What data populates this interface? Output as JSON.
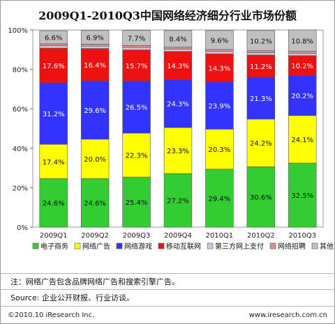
{
  "chart_data": {
    "type": "bar",
    "stacked": true,
    "title": "2009Q1-2010Q3中国网络经济细分行业市场份额",
    "categories": [
      "2009Q1",
      "2009Q2",
      "2009Q3",
      "2009Q4",
      "2010Q1",
      "2010Q2",
      "2010Q3"
    ],
    "y_ticks": [
      "0%",
      "20%",
      "40%",
      "60%",
      "80%",
      "100%"
    ],
    "ylim": [
      0,
      100
    ],
    "legend_position": "bottom",
    "series": [
      {
        "name": "电子商务",
        "color": "#33cc33",
        "values": [
          24.6,
          24.6,
          25.4,
          27.2,
          29.4,
          30.6,
          32.5
        ],
        "labels": [
          "24.6%",
          "24.6%",
          "25.4%",
          "27.2%",
          "29.4%",
          "30.6%",
          "32.5%"
        ]
      },
      {
        "name": "网络广告",
        "color": "#ffff00",
        "values": [
          17.4,
          20.0,
          22.3,
          23.3,
          20.3,
          24.2,
          24.1
        ],
        "labels": [
          "17.4%",
          "20.0%",
          "22.3%",
          "23.3%",
          "20.3%",
          "24.2%",
          "24.1%"
        ]
      },
      {
        "name": "网络游戏",
        "color": "#3333ff",
        "values": [
          31.2,
          29.6,
          26.5,
          24.3,
          23.9,
          21.3,
          20.2
        ],
        "labels": [
          "31.2%",
          "29.6%",
          "26.5%",
          "24.3%",
          "23.9%",
          "21.3%",
          "20.2%"
        ]
      },
      {
        "name": "移动互联网",
        "color": "#ee1111",
        "values": [
          17.6,
          16.4,
          15.7,
          14.3,
          14.3,
          11.2,
          10.2
        ],
        "labels": [
          "17.6%",
          "16.4%",
          "15.7%",
          "14.3%",
          "14.3%",
          "11.2%",
          "10.2%"
        ]
      },
      {
        "name": "第三方网上支付",
        "color": "#c9c9dd",
        "values": [
          1.2,
          1.2,
          1.2,
          1.2,
          1.2,
          1.2,
          1.2
        ],
        "labels": null
      },
      {
        "name": "网络招聘",
        "color": "#d98f8f",
        "values": [
          1.0,
          1.0,
          1.0,
          1.0,
          1.0,
          1.0,
          1.0
        ],
        "labels": null
      },
      {
        "name": "其他",
        "color": "#c0c0c0",
        "values": [
          6.6,
          6.9,
          7.7,
          8.4,
          9.6,
          10.2,
          10.8
        ],
        "labels": [
          "6.6%",
          "6.9%",
          "7.7%",
          "8.4%",
          "9.6%",
          "10.2%",
          "10.8%"
        ]
      }
    ]
  },
  "notes": {
    "note": "注：网络广告包含品牌网络广告和搜索引擎广告。",
    "source": "Source: 企业公开财报、行业访谈。"
  },
  "footer": {
    "copyright": "©2010.10 iResearch Inc.",
    "website": "www.iresearch.com.cn"
  }
}
